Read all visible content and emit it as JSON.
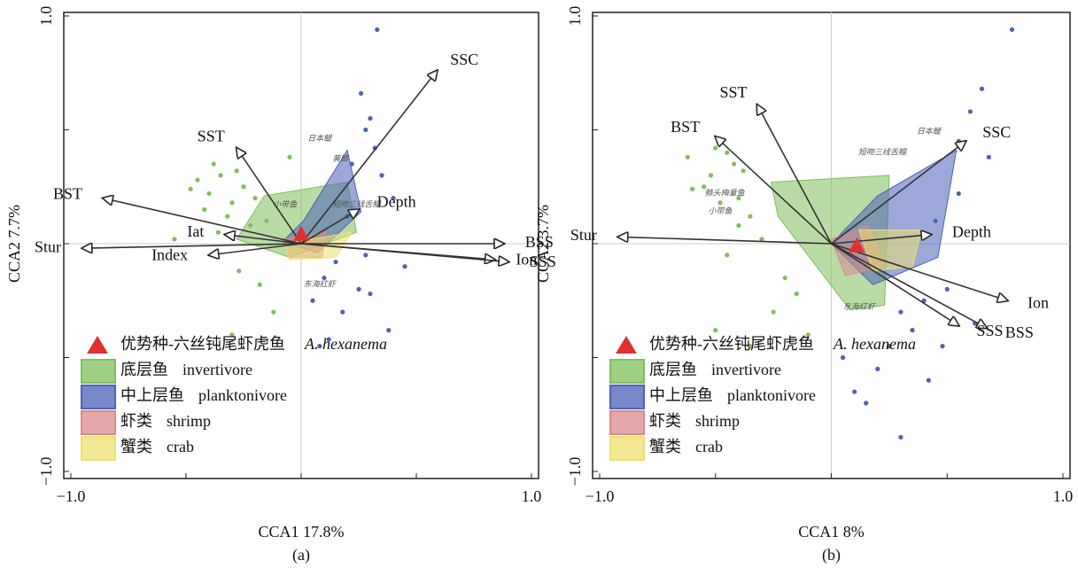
{
  "chart_data": [
    {
      "type": "biplot",
      "caption": "(a)",
      "xlabel": "CCA1 17.8%",
      "ylabel": "CCA2 7.7%",
      "xlim": [
        -1,
        1
      ],
      "ylim": [
        -1,
        1
      ],
      "xticks": [
        {
          "value": -1,
          "label": "−1.0"
        },
        {
          "value": 1,
          "label": "1.0"
        }
      ],
      "yticks": [
        {
          "value": -1,
          "label": "−1.0"
        },
        {
          "value": 1,
          "label": "1.0"
        }
      ],
      "legend": "lower left",
      "dominant": {
        "name": "优势种-六丝钝尾虾虎鱼",
        "name_en": "A. hexanema",
        "color": "#e03030",
        "x": 0,
        "y": 0.04
      },
      "series": [
        {
          "name": "底层鱼",
          "name_en": "invertivore",
          "color": "#7fbf5a",
          "hull_x": [
            -0.16,
            0.2,
            0.24,
            -0.05,
            -0.28
          ],
          "hull_y": [
            0.21,
            0.27,
            0.05,
            -0.06,
            0.02
          ],
          "x": [
            -0.45,
            -0.4,
            -0.35,
            -0.3,
            -0.42,
            -0.25,
            -0.2,
            -0.38,
            -0.32,
            -0.28,
            -0.15,
            -0.48,
            -0.22,
            -0.36,
            -0.27,
            -0.18,
            -0.12,
            -0.3,
            -0.55,
            -0.05
          ],
          "y": [
            0.28,
            0.22,
            0.3,
            0.18,
            0.15,
            0.25,
            0.2,
            0.35,
            0.12,
            0.32,
            0.1,
            0.24,
            0.08,
            0.05,
            -0.12,
            -0.18,
            -0.3,
            -0.4,
            0.02,
            0.38
          ]
        },
        {
          "name": "中上层鱼",
          "name_en": "planktonivore",
          "color": "#4a62b8",
          "hull_x": [
            0.2,
            0.26,
            0.07,
            -0.08,
            0.01
          ],
          "hull_y": [
            0.41,
            0.14,
            -0.04,
            0.01,
            0.1
          ],
          "x": [
            0.33,
            0.26,
            0.3,
            0.28,
            0.32,
            0.22,
            0.35,
            0.4,
            0.2,
            0.15,
            0.1,
            0.25,
            0.3,
            0.05,
            0.18,
            0.38,
            0.12,
            0.45,
            0.28,
            0.08
          ],
          "y": [
            0.94,
            0.66,
            0.55,
            0.5,
            0.42,
            0.35,
            0.3,
            0.2,
            0.12,
            -0.08,
            -0.15,
            -0.2,
            -0.22,
            -0.25,
            -0.3,
            -0.38,
            -0.42,
            -0.1,
            -0.05,
            -0.45
          ]
        },
        {
          "name": "虾类",
          "name_en": "shrimp",
          "color": "#d98a8a",
          "hull_x": [
            -0.08,
            0.11,
            0.09,
            -0.05
          ],
          "hull_y": [
            0.02,
            0.05,
            -0.06,
            -0.06
          ]
        },
        {
          "name": "蟹类",
          "name_en": "crab",
          "color": "#eee070",
          "hull_x": [
            -0.07,
            0.22,
            0.15,
            -0.05
          ],
          "hull_y": [
            0,
            0.05,
            -0.06,
            -0.07
          ]
        }
      ],
      "arrows": [
        {
          "name": "SSC",
          "x": 0.59,
          "y": 0.76
        },
        {
          "name": "SST",
          "x": -0.28,
          "y": 0.42
        },
        {
          "name": "BST",
          "x": -0.86,
          "y": 0.2
        },
        {
          "name": "Stur",
          "x": -0.95,
          "y": -0.02
        },
        {
          "name": "Iat",
          "x": -0.33,
          "y": 0.04
        },
        {
          "name": "Index",
          "x": -0.4,
          "y": -0.05
        },
        {
          "name": "Depth",
          "x": 0.25,
          "y": 0.15
        },
        {
          "name": "BSS",
          "x": 0.88,
          "y": 0
        },
        {
          "name": "Ion",
          "x": 0.84,
          "y": -0.07
        },
        {
          "name": "SSS",
          "x": 0.9,
          "y": -0.08
        }
      ],
      "annotations": [
        {
          "text": "日本鳀",
          "x": 0.08,
          "y": 0.46
        },
        {
          "text": "黄鲫",
          "x": 0.17,
          "y": 0.37
        },
        {
          "text": "短吻三线舌鳎",
          "x": 0.24,
          "y": 0.17
        },
        {
          "text": "小带鱼",
          "x": -0.07,
          "y": 0.17
        },
        {
          "text": "东海红虾",
          "x": 0.08,
          "y": -0.18
        }
      ]
    },
    {
      "type": "biplot",
      "caption": "(b)",
      "xlabel": "CCA1 8%",
      "ylabel": "CCA2 3.7%",
      "xlim": [
        -1,
        1
      ],
      "ylim": [
        -1,
        1
      ],
      "xticks": [
        {
          "value": -1,
          "label": "−1.0"
        },
        {
          "value": 1,
          "label": "1.0"
        }
      ],
      "yticks": [
        {
          "value": -1,
          "label": "−1.0"
        },
        {
          "value": 1,
          "label": "1.0"
        }
      ],
      "legend": "lower left",
      "dominant": {
        "name": "优势种-六丝钝尾虾虎鱼",
        "name_en": "A. hexanema",
        "color": "#e03030",
        "x": 0.11,
        "y": -0.01
      },
      "series": [
        {
          "name": "底层鱼",
          "name_en": "invertivore",
          "color": "#7fbf5a",
          "hull_x": [
            -0.26,
            0.25,
            0.23,
            0.08,
            -0.23
          ],
          "hull_y": [
            0.27,
            0.3,
            -0.27,
            -0.29,
            0.12
          ],
          "x": [
            -0.62,
            -0.5,
            -0.45,
            -0.42,
            -0.55,
            -0.38,
            -0.48,
            -0.35,
            -0.4,
            -0.52,
            -0.3,
            -0.45,
            -0.2,
            -0.25,
            -0.5,
            -0.1,
            -0.35,
            -0.6,
            -0.15,
            -0.4
          ],
          "y": [
            0.38,
            0.42,
            0.4,
            0.35,
            0.25,
            0.32,
            0.18,
            0.12,
            0.08,
            0.3,
            0.02,
            -0.05,
            -0.15,
            -0.3,
            -0.38,
            -0.4,
            -0.45,
            0.24,
            -0.22,
            0.2
          ]
        },
        {
          "name": "中上层鱼",
          "name_en": "planktonivore",
          "color": "#4a62b8",
          "hull_x": [
            0.54,
            0.46,
            0.18,
            0,
            0.2
          ],
          "hull_y": [
            0.41,
            -0.06,
            -0.18,
            0,
            0.21
          ],
          "x": [
            0.78,
            0.65,
            0.6,
            0.55,
            0.68,
            0.45,
            0.5,
            0.4,
            0.3,
            0.35,
            0.25,
            0.2,
            0.42,
            0.62,
            0.1,
            0.05,
            0.15,
            0.55,
            0.48,
            0.3
          ],
          "y": [
            0.94,
            0.68,
            0.58,
            0.45,
            0.38,
            0.1,
            -0.2,
            -0.25,
            -0.3,
            -0.38,
            -0.45,
            -0.55,
            -0.6,
            -0.35,
            -0.65,
            -0.5,
            -0.7,
            0.22,
            -0.45,
            -0.85
          ]
        },
        {
          "name": "虾类",
          "name_en": "shrimp",
          "color": "#d98a8a",
          "hull_x": [
            0,
            0.16,
            0.23,
            0.06
          ],
          "hull_y": [
            0.02,
            0.08,
            -0.1,
            -0.14
          ]
        },
        {
          "name": "蟹类",
          "name_en": "crab",
          "color": "#eee070",
          "hull_x": [
            0.12,
            0.39,
            0.35,
            0.18
          ],
          "hull_y": [
            0.06,
            0.06,
            -0.1,
            -0.12
          ]
        }
      ],
      "arrows": [
        {
          "name": "SST",
          "x": -0.32,
          "y": 0.61
        },
        {
          "name": "BST",
          "x": -0.5,
          "y": 0.47
        },
        {
          "name": "SSC",
          "x": 0.58,
          "y": 0.45
        },
        {
          "name": "Stur",
          "x": -0.92,
          "y": 0.03
        },
        {
          "name": "Depth",
          "x": 0.43,
          "y": 0.04
        },
        {
          "name": "Ion",
          "x": 0.76,
          "y": -0.25
        },
        {
          "name": "BSS",
          "x": 0.67,
          "y": -0.37
        },
        {
          "name": "SSS",
          "x": 0.55,
          "y": -0.36
        }
      ],
      "annotations": [
        {
          "text": "日本鳀",
          "x": 0.42,
          "y": 0.49
        },
        {
          "text": "短吻三线舌鳎",
          "x": 0.22,
          "y": 0.4
        },
        {
          "text": "鲦头梅童鱼",
          "x": -0.46,
          "y": 0.22
        },
        {
          "text": "小带鱼",
          "x": -0.48,
          "y": 0.14
        },
        {
          "text": "东海红虾",
          "x": 0.12,
          "y": -0.28
        }
      ]
    }
  ]
}
